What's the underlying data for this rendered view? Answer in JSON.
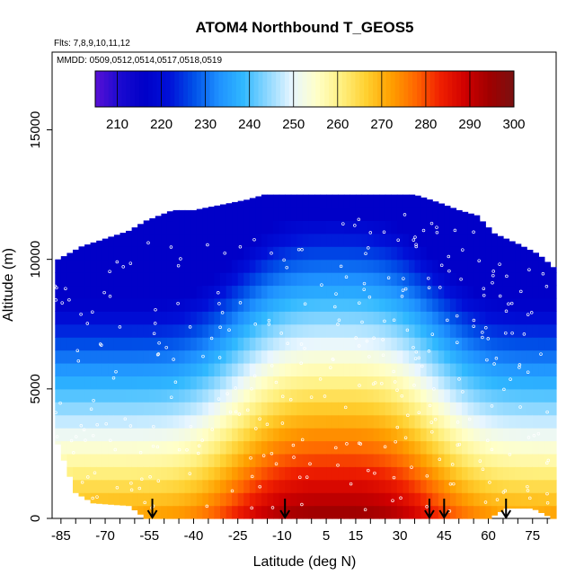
{
  "chart_data": {
    "type": "heatmap",
    "title": "ATOM4 Northbound T_GEOS5",
    "annotations": {
      "flights": "Flts: 7,8,9,10,11,12",
      "dates": "MMDD: 0509,0512,0514,0517,0518,0519"
    },
    "xlabel": "Latitude (deg N)",
    "ylabel": "Altitude (m)",
    "xlim": [
      -88,
      83
    ],
    "ylim": [
      0,
      18000
    ],
    "x_ticks": [
      -85,
      -70,
      -55,
      -40,
      -25,
      -10,
      5,
      15,
      30,
      45,
      60,
      75
    ],
    "y_ticks": [
      0,
      5000,
      10000,
      15000
    ],
    "colorbar": {
      "min": 205,
      "max": 300,
      "ticks": [
        210,
        220,
        230,
        240,
        250,
        260,
        270,
        280,
        290,
        300
      ],
      "colors": [
        "#5a0fd6",
        "#1a0ad0",
        "#0000c8",
        "#0010d8",
        "#0050e8",
        "#1e90ff",
        "#30b8ff",
        "#8ed8ff",
        "#e8f6ff",
        "#ffffc8",
        "#fff080",
        "#ffd030",
        "#ffa000",
        "#ff6800",
        "#f02000",
        "#d00000",
        "#a00000",
        "#7a1010"
      ]
    },
    "temperature_model": {
      "surface_tropics": 296,
      "surface_poles": 273,
      "top_temperature": 216,
      "lapse_rate_per_km": 6.8,
      "tropical_center_lat": 8,
      "tropical_halfwidth_deg": 38
    },
    "ceiling_m": [
      [
        -86,
        10000
      ],
      [
        -78,
        10500
      ],
      [
        -70,
        10800
      ],
      [
        -62,
        11100
      ],
      [
        -56,
        11500
      ],
      [
        -47,
        11900
      ],
      [
        -40,
        11900
      ],
      [
        -31,
        12100
      ],
      [
        -22,
        12300
      ],
      [
        -16,
        12500
      ],
      [
        -5,
        12500
      ],
      [
        5,
        12500
      ],
      [
        15,
        12500
      ],
      [
        25,
        12500
      ],
      [
        35,
        12500
      ],
      [
        43,
        12200
      ],
      [
        50,
        11900
      ],
      [
        56,
        11700
      ],
      [
        62,
        11000
      ],
      [
        70,
        10600
      ],
      [
        77,
        10200
      ],
      [
        82,
        9700
      ]
    ],
    "floor_m": [
      [
        -88,
        3500
      ],
      [
        -80,
        1000
      ],
      [
        -74,
        600
      ],
      [
        -62,
        500
      ],
      [
        -56,
        0
      ],
      [
        -50,
        0
      ],
      [
        60,
        0
      ],
      [
        66,
        400
      ],
      [
        75,
        400
      ],
      [
        82,
        0
      ]
    ],
    "flight_track_marker_lats": [
      -54,
      -9,
      40,
      45,
      66
    ]
  }
}
